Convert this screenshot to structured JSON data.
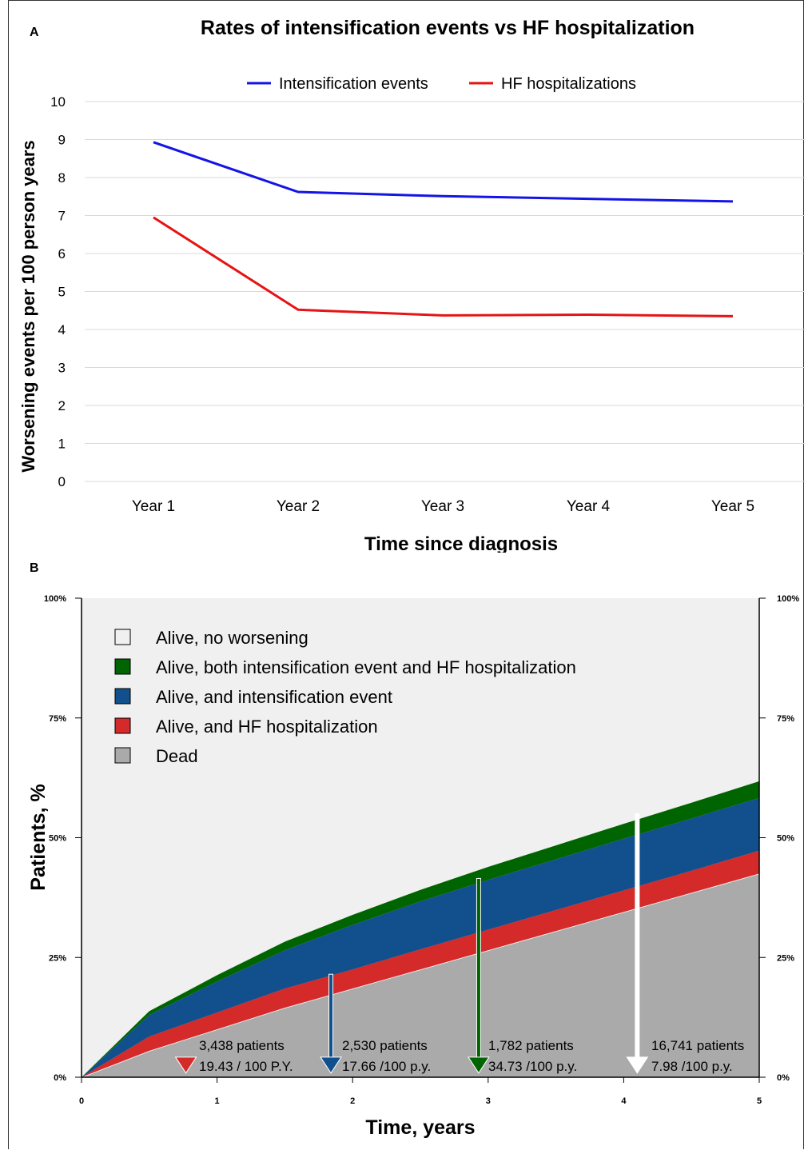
{
  "panel_a": {
    "letter": "A",
    "title": "Rates of intensification events vs HF hospitalization",
    "legend": [
      {
        "label": "Intensification events",
        "color": "#1414e6"
      },
      {
        "label": "HF hospitalizations",
        "color": "#e61414"
      }
    ]
  },
  "panel_b": {
    "letter": "B",
    "legend": [
      {
        "label": "Alive, no worsening",
        "color": "#f0f0f0"
      },
      {
        "label": "Alive, both intensification event and HF hospitalization",
        "color": "#006400"
      },
      {
        "label": "Alive, and intensification event",
        "color": "#11508c"
      },
      {
        "label": "Alive, and HF hospitalization",
        "color": "#d42a2a"
      },
      {
        "label": "Dead",
        "color": "#aaaaaa"
      }
    ],
    "annotations": [
      {
        "line1": "3,438 patients",
        "line2": "19.43 / 100 P.Y.",
        "color": "#d42a2a"
      },
      {
        "line1": "2,530 patients",
        "line2": "17.66 /100 p.y.",
        "color": "#11508c"
      },
      {
        "line1": "1,782 patients",
        "line2": "34.73 /100 p.y.",
        "color": "#006400"
      },
      {
        "line1": "16,741 patients",
        "line2": "7.98 /100 p.y.",
        "color": "#ffffff"
      }
    ]
  },
  "chart_data": [
    {
      "type": "line",
      "title": "Rates of intensification events vs HF hospitalization",
      "xlabel": "Time since diagnosis",
      "ylabel": "Worsening events per 100 person years",
      "categories": [
        "Year 1",
        "Year 2",
        "Year 3",
        "Year 4",
        "Year 5"
      ],
      "ylim": [
        0,
        10
      ],
      "yticks": [
        "0",
        "1",
        "2",
        "3",
        "4",
        "5",
        "6",
        "7",
        "8",
        "9",
        "10"
      ],
      "grid": true,
      "legend_position": "top",
      "series": [
        {
          "name": "Intensification events",
          "values": [
            8.93,
            7.62,
            7.51,
            7.44,
            7.37
          ],
          "color": "#1414e6"
        },
        {
          "name": "HF hospitalizations",
          "values": [
            6.95,
            4.52,
            4.37,
            4.39,
            4.35
          ],
          "color": "#e61414"
        }
      ]
    },
    {
      "type": "area",
      "xlabel": "Time, years",
      "ylabel": "Patients, %",
      "xlim": [
        0,
        5
      ],
      "ylim": [
        0,
        100
      ],
      "xticks": [
        "0",
        "1",
        "2",
        "3",
        "4",
        "5"
      ],
      "yticks": [
        "0%",
        "25%",
        "50%",
        "75%",
        "100%"
      ],
      "legend_position": "top-left",
      "x": [
        0,
        0.5,
        1,
        1.5,
        2,
        2.5,
        3,
        3.5,
        4,
        4.5,
        5
      ],
      "series": [
        {
          "name": "Dead",
          "values": [
            0,
            5.5,
            10,
            14.5,
            18.5,
            22.5,
            26.5,
            30.5,
            34.5,
            38.5,
            42.5
          ],
          "color": "#aaaaaa"
        },
        {
          "name": "Alive, and HF hospitalization",
          "values": [
            0,
            3,
            3.5,
            4,
            4,
            4.2,
            4.3,
            4.4,
            4.5,
            4.6,
            4.8
          ],
          "color": "#d42a2a"
        },
        {
          "name": "Alive, and intensification event",
          "values": [
            0,
            4.5,
            6.5,
            8,
            9.3,
            10,
            10.4,
            10.6,
            10.8,
            10.9,
            11
          ],
          "color": "#11508c"
        },
        {
          "name": "Alive, both intensification event and HF hospitalization",
          "values": [
            0,
            0.8,
            1.3,
            1.8,
            2.1,
            2.4,
            2.7,
            2.9,
            3.1,
            3.3,
            3.5
          ],
          "color": "#006400"
        },
        {
          "name": "Alive, no worsening",
          "values": [
            100,
            86.2,
            78.7,
            71.7,
            66.1,
            60.9,
            56.1,
            51.6,
            47.1,
            42.7,
            38.2
          ],
          "color": "#f0f0f0"
        }
      ]
    }
  ]
}
